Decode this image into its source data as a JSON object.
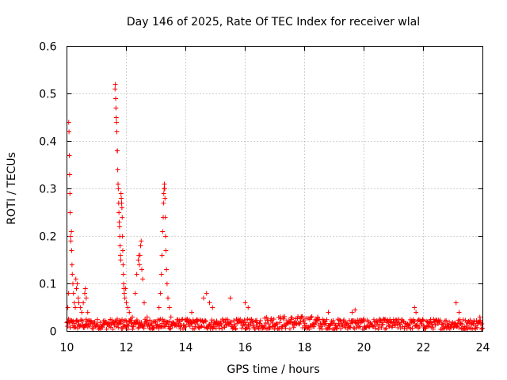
{
  "chart_data": {
    "type": "scatter",
    "title": "Day 146 of 2025, Rate Of TEC Index for receiver wlal",
    "xlabel": "GPS time / hours",
    "ylabel": "ROTI / TECUs",
    "xlim": [
      10,
      24
    ],
    "ylim": [
      0,
      0.6
    ],
    "x_ticks": [
      10,
      12,
      14,
      16,
      18,
      20,
      22,
      24
    ],
    "x_tick_labels": [
      "10",
      "12",
      "14",
      "16",
      "18",
      "20",
      "22",
      "24"
    ],
    "y_ticks": [
      0,
      0.1,
      0.2,
      0.3,
      0.4,
      0.5,
      0.6
    ],
    "y_tick_labels": [
      "0",
      "0.1",
      "0.2",
      "0.3",
      "0.4",
      "0.5",
      "0.6"
    ],
    "grid": true,
    "marker": "+",
    "series": [
      {
        "name": "ROTI",
        "color": "#ff0000",
        "points": [
          [
            10.02,
            0.02
          ],
          [
            10.03,
            0.05
          ],
          [
            10.05,
            0.08
          ],
          [
            10.06,
            0.44
          ],
          [
            10.07,
            0.42
          ],
          [
            10.08,
            0.37
          ],
          [
            10.09,
            0.33
          ],
          [
            10.1,
            0.29
          ],
          [
            10.11,
            0.25
          ],
          [
            10.12,
            0.2
          ],
          [
            10.13,
            0.19
          ],
          [
            10.15,
            0.21
          ],
          [
            10.16,
            0.17
          ],
          [
            10.17,
            0.14
          ],
          [
            10.18,
            0.12
          ],
          [
            10.2,
            0.1
          ],
          [
            10.22,
            0.08
          ],
          [
            10.25,
            0.06
          ],
          [
            10.28,
            0.05
          ],
          [
            10.3,
            0.11
          ],
          [
            10.32,
            0.09
          ],
          [
            10.35,
            0.1
          ],
          [
            10.38,
            0.07
          ],
          [
            10.4,
            0.06
          ],
          [
            10.45,
            0.05
          ],
          [
            10.5,
            0.04
          ],
          [
            10.55,
            0.06
          ],
          [
            10.6,
            0.08
          ],
          [
            10.62,
            0.09
          ],
          [
            10.65,
            0.07
          ],
          [
            10.7,
            0.04
          ],
          [
            10.8,
            0.02
          ],
          [
            11.62,
            0.51
          ],
          [
            11.63,
            0.52
          ],
          [
            11.64,
            0.49
          ],
          [
            11.65,
            0.47
          ],
          [
            11.66,
            0.45
          ],
          [
            11.67,
            0.44
          ],
          [
            11.68,
            0.42
          ],
          [
            11.69,
            0.38
          ],
          [
            11.7,
            0.38
          ],
          [
            11.71,
            0.34
          ],
          [
            11.72,
            0.31
          ],
          [
            11.73,
            0.3
          ],
          [
            11.74,
            0.27
          ],
          [
            11.75,
            0.25
          ],
          [
            11.76,
            0.23
          ],
          [
            11.77,
            0.22
          ],
          [
            11.78,
            0.2
          ],
          [
            11.79,
            0.18
          ],
          [
            11.8,
            0.16
          ],
          [
            11.81,
            0.15
          ],
          [
            11.82,
            0.29
          ],
          [
            11.83,
            0.28
          ],
          [
            11.84,
            0.27
          ],
          [
            11.85,
            0.26
          ],
          [
            11.86,
            0.24
          ],
          [
            11.87,
            0.2
          ],
          [
            11.88,
            0.17
          ],
          [
            11.89,
            0.14
          ],
          [
            11.9,
            0.12
          ],
          [
            11.91,
            0.1
          ],
          [
            11.92,
            0.09
          ],
          [
            11.93,
            0.08
          ],
          [
            11.95,
            0.07
          ],
          [
            11.97,
            0.09
          ],
          [
            12.0,
            0.06
          ],
          [
            12.05,
            0.05
          ],
          [
            12.1,
            0.04
          ],
          [
            12.2,
            0.03
          ],
          [
            12.3,
            0.08
          ],
          [
            12.35,
            0.12
          ],
          [
            12.4,
            0.15
          ],
          [
            12.42,
            0.16
          ],
          [
            12.44,
            0.14
          ],
          [
            12.46,
            0.16
          ],
          [
            12.48,
            0.18
          ],
          [
            12.5,
            0.19
          ],
          [
            12.52,
            0.13
          ],
          [
            12.55,
            0.11
          ],
          [
            12.6,
            0.06
          ],
          [
            12.7,
            0.03
          ],
          [
            12.9,
            0.02
          ],
          [
            13.1,
            0.05
          ],
          [
            13.15,
            0.08
          ],
          [
            13.18,
            0.12
          ],
          [
            13.2,
            0.16
          ],
          [
            13.22,
            0.21
          ],
          [
            13.24,
            0.24
          ],
          [
            13.25,
            0.27
          ],
          [
            13.26,
            0.29
          ],
          [
            13.27,
            0.3
          ],
          [
            13.28,
            0.31
          ],
          [
            13.29,
            0.3
          ],
          [
            13.3,
            0.28
          ],
          [
            13.31,
            0.24
          ],
          [
            13.32,
            0.2
          ],
          [
            13.33,
            0.17
          ],
          [
            13.35,
            0.13
          ],
          [
            13.37,
            0.1
          ],
          [
            13.4,
            0.07
          ],
          [
            13.45,
            0.05
          ],
          [
            13.5,
            0.03
          ],
          [
            13.8,
            0.02
          ],
          [
            14.2,
            0.04
          ],
          [
            14.6,
            0.07
          ],
          [
            14.7,
            0.08
          ],
          [
            14.8,
            0.06
          ],
          [
            14.9,
            0.05
          ],
          [
            15.5,
            0.07
          ],
          [
            16.0,
            0.06
          ],
          [
            16.1,
            0.05
          ],
          [
            18.8,
            0.04
          ],
          [
            19.6,
            0.04
          ],
          [
            19.7,
            0.045
          ],
          [
            21.7,
            0.05
          ],
          [
            21.75,
            0.04
          ],
          [
            23.1,
            0.06
          ],
          [
            23.2,
            0.04
          ],
          [
            23.9,
            0.03
          ]
        ]
      }
    ]
  }
}
